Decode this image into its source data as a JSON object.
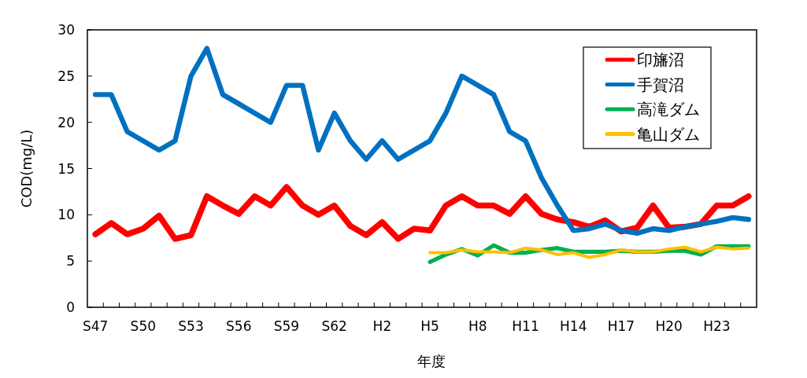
{
  "chart_data": {
    "type": "line",
    "xlabel": "年度",
    "ylabel": "COD(mg/L)",
    "categories": [
      "S47",
      null,
      null,
      "S50",
      null,
      null,
      "S53",
      null,
      null,
      "S56",
      null,
      null,
      "S59",
      null,
      null,
      "S62",
      null,
      null,
      "H2",
      null,
      null,
      "H5",
      null,
      null,
      "H8",
      null,
      null,
      "H11",
      null,
      null,
      "H14",
      null,
      null,
      "H17",
      null,
      null,
      "H20",
      null,
      null,
      "H23",
      null,
      null
    ],
    "ylim": [
      0,
      30
    ],
    "yticks": [
      0,
      5,
      10,
      15,
      20,
      25,
      30
    ],
    "legend": "top right",
    "series": [
      {
        "name": "印旛沼",
        "color": "#ff0000",
        "values": [
          7.9,
          9.1,
          7.9,
          8.5,
          9.9,
          7.4,
          7.8,
          12,
          11,
          10.1,
          12,
          11,
          13,
          11,
          10,
          11,
          8.8,
          7.8,
          9.2,
          7.4,
          8.5,
          8.3,
          11,
          12,
          11,
          11,
          10.1,
          12,
          10.1,
          9.5,
          9.2,
          8.7,
          9.4,
          8.2,
          8.6,
          11,
          8.6,
          8.7,
          9,
          11,
          11,
          12
        ]
      },
      {
        "name": "手賀沼",
        "color": "#0070c0",
        "values": [
          23,
          23,
          19,
          18,
          17,
          18,
          25,
          28,
          23,
          22,
          21,
          20,
          24,
          24,
          17,
          21,
          18,
          16,
          18,
          16,
          17,
          18,
          21,
          25,
          24,
          23,
          19,
          18,
          14,
          11,
          8.3,
          8.5,
          9,
          8.3,
          8,
          8.5,
          8.3,
          8.7,
          9,
          9.3,
          9.7,
          9.5
        ]
      },
      {
        "name": "高滝ダム",
        "color": "#00b050",
        "values": [
          null,
          null,
          null,
          null,
          null,
          null,
          null,
          null,
          null,
          null,
          null,
          null,
          null,
          null,
          null,
          null,
          null,
          null,
          null,
          null,
          null,
          4.9,
          5.7,
          6.3,
          5.6,
          6.7,
          5.9,
          5.9,
          6.2,
          6.4,
          6,
          6,
          6,
          6.1,
          6,
          6,
          6.1,
          6.1,
          5.7,
          6.6,
          6.6,
          6.6
        ]
      },
      {
        "name": "亀山ダム",
        "color": "#ffc000",
        "values": [
          null,
          null,
          null,
          null,
          null,
          null,
          null,
          null,
          null,
          null,
          null,
          null,
          null,
          null,
          null,
          null,
          null,
          null,
          null,
          null,
          null,
          5.9,
          5.9,
          6.2,
          6,
          6,
          5.9,
          6.4,
          6.2,
          5.7,
          5.9,
          5.4,
          5.7,
          6.2,
          6,
          6,
          6.3,
          6.5,
          6,
          6.5,
          6.3,
          6.4
        ]
      }
    ]
  }
}
